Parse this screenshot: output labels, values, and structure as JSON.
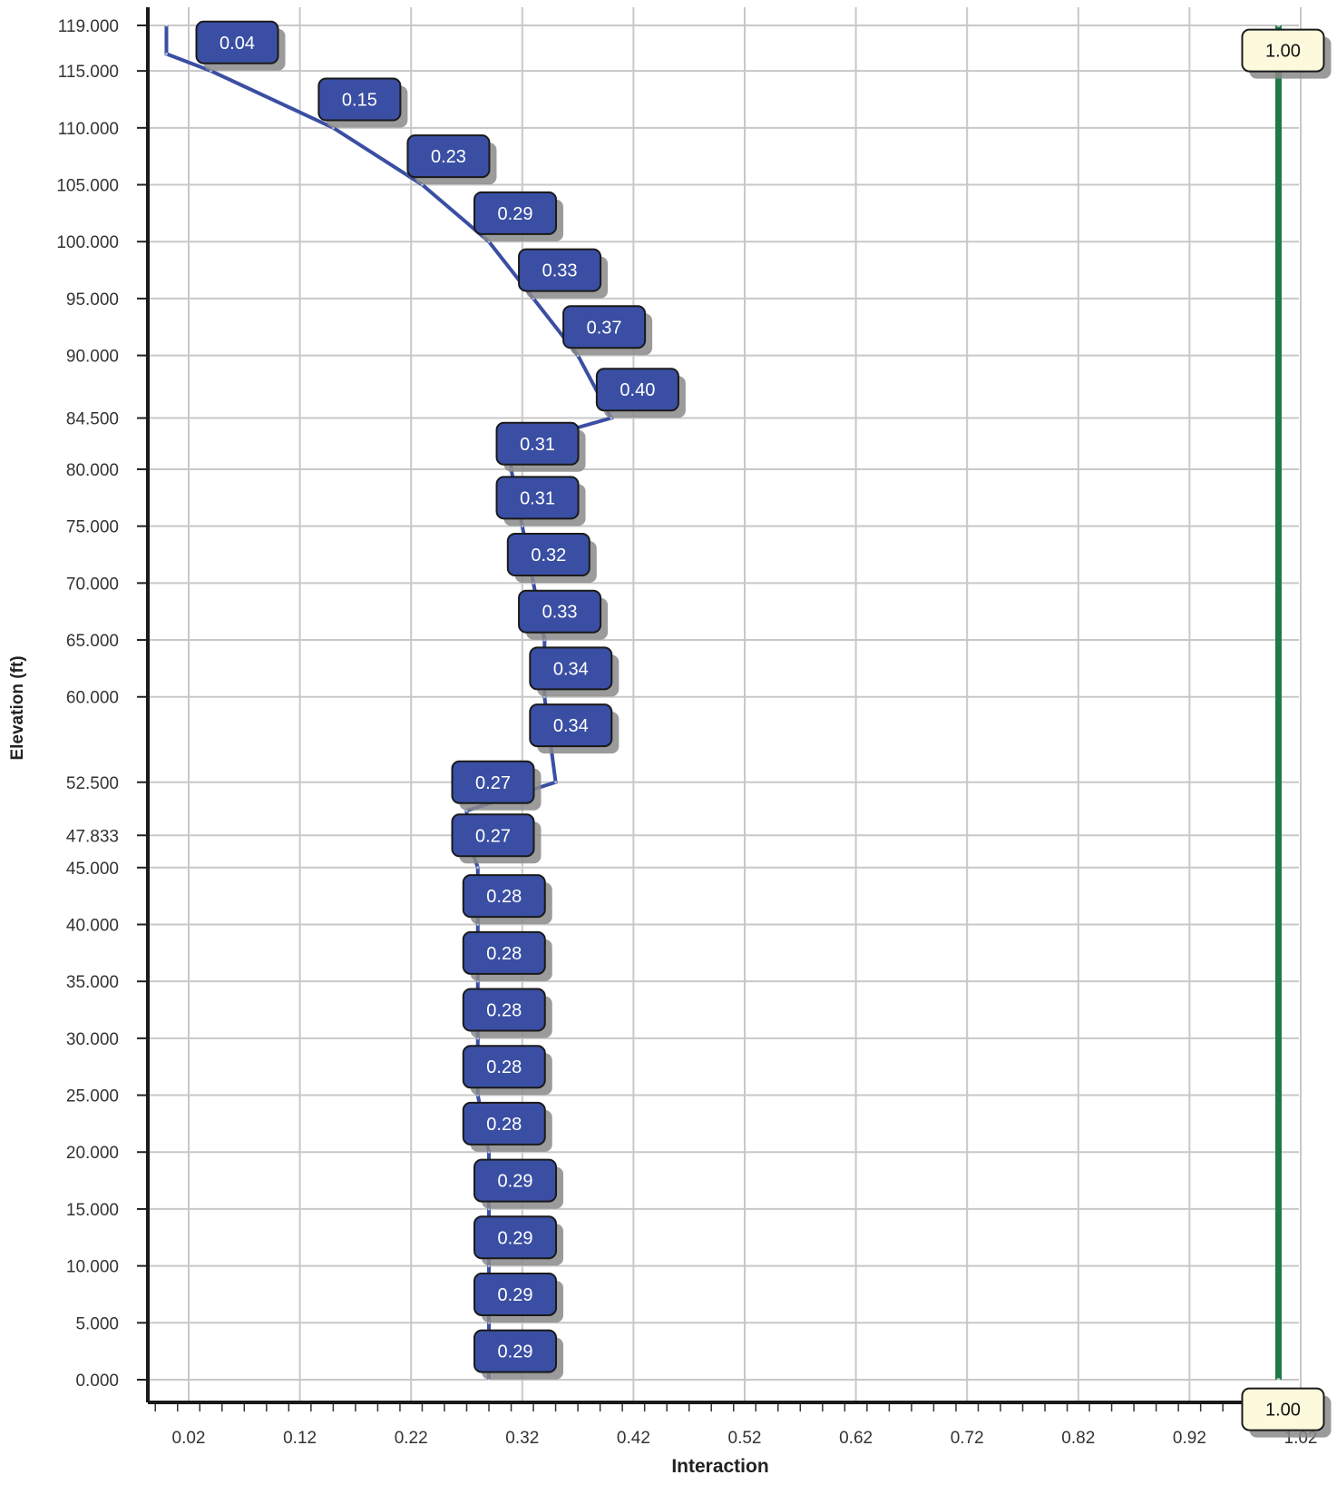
{
  "chart_data": {
    "type": "line",
    "xlabel": "Interaction",
    "ylabel": "Elevation (ft)",
    "xlim": [
      -0.016,
      1.03
    ],
    "x_ticks": [
      "0.02",
      "0.12",
      "0.22",
      "0.32",
      "0.42",
      "0.52",
      "0.62",
      "0.72",
      "0.82",
      "0.92",
      "1.02"
    ],
    "x_tick_values": [
      0.02,
      0.12,
      0.22,
      0.32,
      0.42,
      0.52,
      0.62,
      0.72,
      0.82,
      0.92,
      1.02
    ],
    "y_ticks": [
      "119.000",
      "115.000",
      "110.000",
      "105.000",
      "100.000",
      "95.000",
      "90.000",
      "84.500",
      "80.000",
      "75.000",
      "70.000",
      "65.000",
      "60.000",
      "52.500",
      "47.833",
      "45.000",
      "40.000",
      "35.000",
      "30.000",
      "25.000",
      "20.000",
      "15.000",
      "10.000",
      "5.000",
      "0.000"
    ],
    "y_tick_values": [
      119,
      115,
      110,
      105,
      100,
      95,
      90,
      84.5,
      80,
      75,
      70,
      65,
      60,
      52.5,
      47.833,
      45,
      40,
      35,
      30,
      25,
      20,
      15,
      10,
      5,
      0
    ],
    "grid": true,
    "series": [
      {
        "color": "#3a4fa3",
        "points": [
          {
            "x": 0.0,
            "y": 119.0
          },
          {
            "x": 0.0,
            "y": 116.5
          },
          {
            "x": 0.04,
            "y": 115.0
          },
          {
            "x": 0.15,
            "y": 110.0
          },
          {
            "x": 0.23,
            "y": 105.0
          },
          {
            "x": 0.29,
            "y": 100.0
          },
          {
            "x": 0.33,
            "y": 95.0
          },
          {
            "x": 0.37,
            "y": 90.0
          },
          {
            "x": 0.4,
            "y": 84.5
          },
          {
            "x": 0.31,
            "y": 82.0
          },
          {
            "x": 0.31,
            "y": 80.0
          },
          {
            "x": 0.32,
            "y": 75.0
          },
          {
            "x": 0.33,
            "y": 70.0
          },
          {
            "x": 0.34,
            "y": 65.0
          },
          {
            "x": 0.34,
            "y": 60.0
          },
          {
            "x": 0.35,
            "y": 52.5
          },
          {
            "x": 0.27,
            "y": 50.0
          },
          {
            "x": 0.27,
            "y": 47.833
          },
          {
            "x": 0.28,
            "y": 45.0
          },
          {
            "x": 0.28,
            "y": 40.0
          },
          {
            "x": 0.28,
            "y": 35.0
          },
          {
            "x": 0.28,
            "y": 30.0
          },
          {
            "x": 0.28,
            "y": 25.0
          },
          {
            "x": 0.29,
            "y": 20.0
          },
          {
            "x": 0.29,
            "y": 15.0
          },
          {
            "x": 0.29,
            "y": 10.0
          },
          {
            "x": 0.29,
            "y": 5.0
          },
          {
            "x": 0.29,
            "y": 0.0
          }
        ],
        "labels": [
          {
            "text": "0.04",
            "x": 0.04,
            "y": 117.5
          },
          {
            "text": "0.15",
            "x": 0.15,
            "y": 112.5
          },
          {
            "text": "0.23",
            "x": 0.23,
            "y": 107.5
          },
          {
            "text": "0.29",
            "x": 0.29,
            "y": 102.5
          },
          {
            "text": "0.33",
            "x": 0.33,
            "y": 97.5
          },
          {
            "text": "0.37",
            "x": 0.37,
            "y": 92.5
          },
          {
            "text": "0.40",
            "x": 0.4,
            "y": 87.0
          },
          {
            "text": "0.31",
            "x": 0.31,
            "y": 82.25
          },
          {
            "text": "0.31",
            "x": 0.31,
            "y": 77.5
          },
          {
            "text": "0.32",
            "x": 0.32,
            "y": 72.5
          },
          {
            "text": "0.33",
            "x": 0.33,
            "y": 67.5
          },
          {
            "text": "0.34",
            "x": 0.34,
            "y": 62.5
          },
          {
            "text": "0.34",
            "x": 0.34,
            "y": 57.5
          },
          {
            "text": "0.27",
            "x": 0.27,
            "y": 52.5
          },
          {
            "text": "0.27",
            "x": 0.27,
            "y": 47.833
          },
          {
            "text": "0.28",
            "x": 0.28,
            "y": 42.5
          },
          {
            "text": "0.28",
            "x": 0.28,
            "y": 37.5
          },
          {
            "text": "0.28",
            "x": 0.28,
            "y": 32.5
          },
          {
            "text": "0.28",
            "x": 0.28,
            "y": 27.5
          },
          {
            "text": "0.28",
            "x": 0.28,
            "y": 22.5
          },
          {
            "text": "0.29",
            "x": 0.29,
            "y": 17.5
          },
          {
            "text": "0.29",
            "x": 0.29,
            "y": 12.5
          },
          {
            "text": "0.29",
            "x": 0.29,
            "y": 7.5
          },
          {
            "text": "0.29",
            "x": 0.29,
            "y": 2.5
          }
        ]
      },
      {
        "color": "#1e7a46",
        "points": [
          {
            "x": 1.0,
            "y": 0.0
          },
          {
            "x": 1.0,
            "y": 119.0
          }
        ],
        "labels": [
          {
            "text": "1.00",
            "x": 1.0,
            "y": 116.8
          },
          {
            "text": "1.00",
            "x": 1.0,
            "y": -2.6
          }
        ]
      }
    ]
  }
}
